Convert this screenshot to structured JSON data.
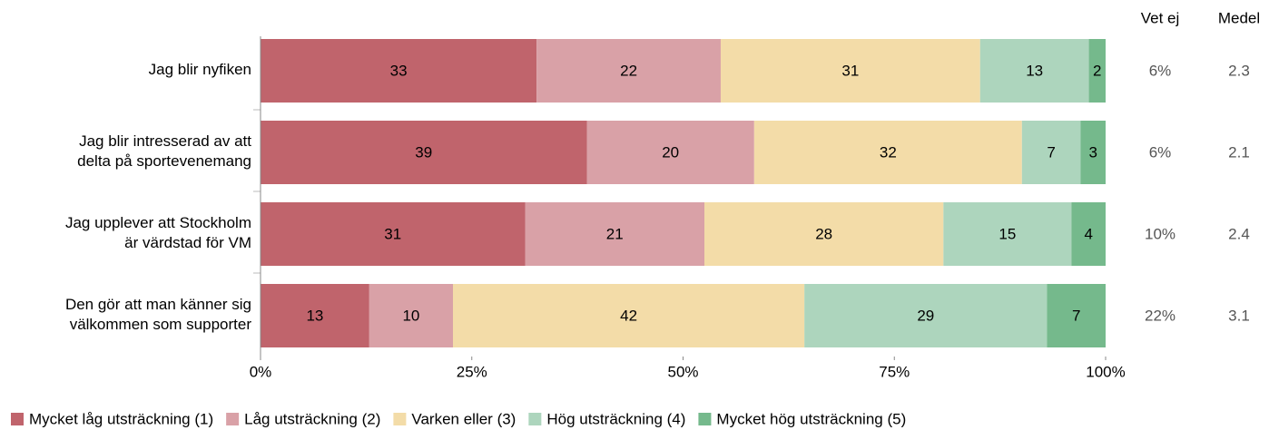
{
  "chart_data": {
    "type": "bar",
    "orientation": "horizontal",
    "stacking": "percent",
    "categories": [
      [
        "Jag blir nyfiken"
      ],
      [
        "Jag blir intresserad av att",
        "delta på sportevenemang"
      ],
      [
        "Jag upplever att Stockholm",
        "är värdstad för VM"
      ],
      [
        "Den gör att man känner sig",
        "välkommen som supporter"
      ]
    ],
    "series": [
      {
        "name": "Mycket låg utsträckning (1)",
        "color": "#c0646c",
        "values": [
          33,
          39,
          31,
          13
        ]
      },
      {
        "name": "Låg utsträckning (2)",
        "color": "#d9a1a7",
        "values": [
          22,
          20,
          21,
          10
        ]
      },
      {
        "name": "Varken eller (3)",
        "color": "#f3dca8",
        "values": [
          31,
          32,
          28,
          42
        ]
      },
      {
        "name": "Hög utsträckning (4)",
        "color": "#add5bd",
        "values": [
          13,
          7,
          15,
          29
        ]
      },
      {
        "name": "Mycket hög utsträckning (5)",
        "color": "#75b98c",
        "values": [
          2,
          3,
          4,
          7
        ]
      }
    ],
    "xlim": [
      0,
      100
    ],
    "xticks": [
      {
        "value": 0,
        "label": "0%"
      },
      {
        "value": 25,
        "label": "25%"
      },
      {
        "value": 50,
        "label": "50%"
      },
      {
        "value": 75,
        "label": "75%"
      },
      {
        "value": 100,
        "label": "100%"
      }
    ],
    "legend": "bottom-left",
    "columns": [
      {
        "name": "Vet ej",
        "values": [
          6,
          6,
          10,
          22
        ],
        "value_labels": [
          "6%",
          "6%",
          "10%",
          "22%"
        ]
      },
      {
        "name": "Medel",
        "values": [
          2.3,
          2.1,
          2.4,
          3.1
        ]
      }
    ]
  }
}
